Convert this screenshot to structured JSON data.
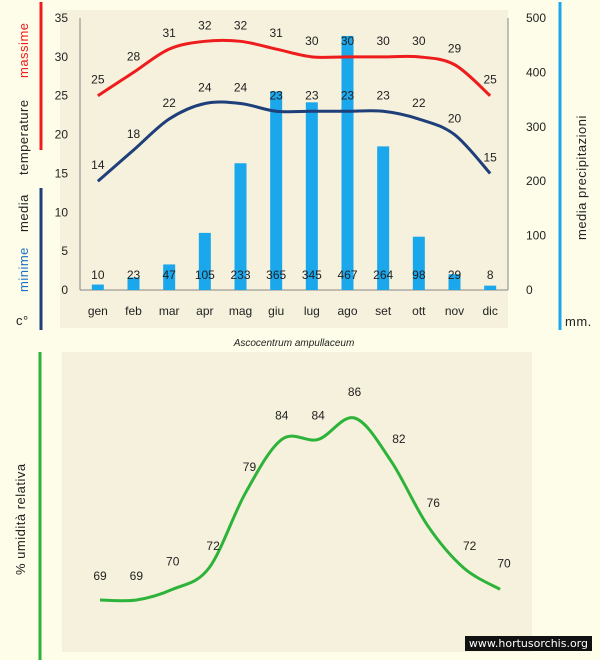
{
  "colors": {
    "max_line": "#ee1c1c",
    "min_line": "#1f3f7a",
    "bars": "#1aa7ec",
    "humidity_line": "#2db33a",
    "panel": "#f5f1dc"
  },
  "labels": {
    "massime": "massime",
    "temperature": "temperature",
    "media_left": "media",
    "minime": "minime",
    "celsius": "c°",
    "precip_right": "media  precipitazioni",
    "mm": "mm.",
    "species": "Ascocentrum  ampullaceum",
    "humidity_axis": "% umidità relativa",
    "watermark": "www.hortusorchis.org"
  },
  "chart_data": [
    {
      "type": "bar+line",
      "categories": [
        "gen",
        "feb",
        "mar",
        "apr",
        "mag",
        "giu",
        "lug",
        "ago",
        "set",
        "ott",
        "nov",
        "dic"
      ],
      "temperature_axis": {
        "ylim": [
          0,
          35
        ],
        "ticks": [
          0,
          5,
          10,
          15,
          20,
          25,
          30,
          35
        ]
      },
      "precipitation_axis": {
        "ylim": [
          0,
          500
        ],
        "ticks": [
          0,
          100,
          200,
          300,
          400,
          500
        ]
      },
      "series": [
        {
          "name": "massime",
          "kind": "line",
          "axis": "temperature",
          "values": [
            25,
            28,
            31,
            32,
            32,
            31,
            30,
            30,
            30,
            30,
            29,
            25
          ]
        },
        {
          "name": "minime",
          "kind": "line",
          "axis": "temperature",
          "values": [
            14,
            18,
            22,
            24,
            24,
            23,
            23,
            23,
            23,
            22,
            20,
            15
          ]
        },
        {
          "name": "media precipitazioni",
          "kind": "bar",
          "axis": "precipitation",
          "values": [
            10,
            23,
            47,
            105,
            233,
            365,
            345,
            467,
            264,
            98,
            29,
            8
          ]
        }
      ],
      "grid": false
    },
    {
      "type": "line",
      "title": "% umidità relativa",
      "series": [
        {
          "values": [
            69,
            69,
            70,
            72,
            79,
            84,
            84,
            86,
            82,
            76,
            72,
            70
          ]
        }
      ],
      "grid": false
    }
  ]
}
